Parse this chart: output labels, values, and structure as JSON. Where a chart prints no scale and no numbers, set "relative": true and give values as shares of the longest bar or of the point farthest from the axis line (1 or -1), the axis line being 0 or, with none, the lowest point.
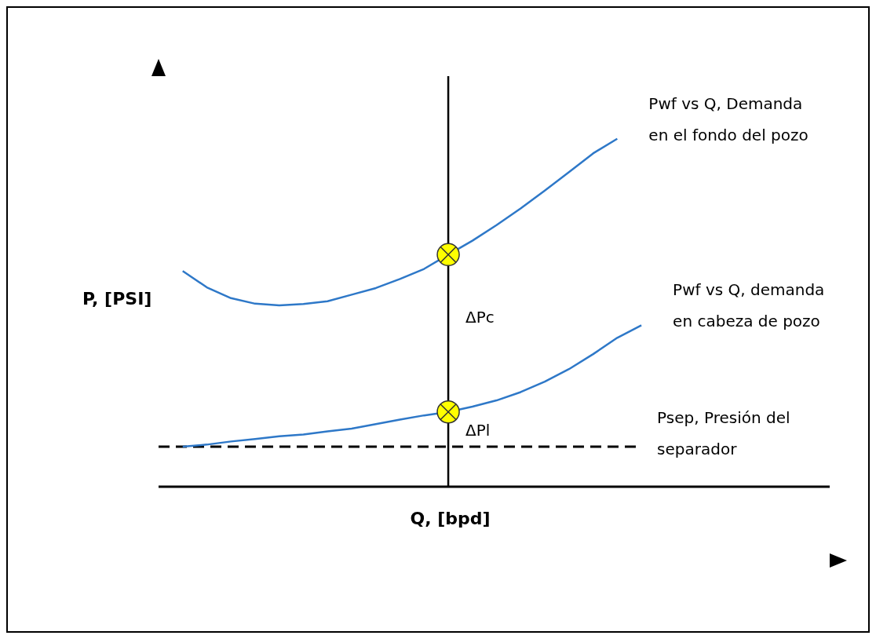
{
  "chart_data": {
    "type": "line",
    "relative": true,
    "xlabel": "Q, [bpd]",
    "ylabel": "P, [PSI]",
    "grid": false,
    "legend": false,
    "categories": [
      null,
      null,
      null,
      null,
      null,
      null,
      null,
      null,
      null,
      null,
      null,
      null,
      null,
      null,
      null,
      null,
      null,
      null,
      null,
      null,
      null
    ],
    "series": [
      {
        "name": "Pwf vs Q, Demanda en el fondo del pozo",
        "color": "#2e78c8",
        "values": [
          null,
          0.62,
          0.573,
          0.542,
          0.526,
          0.521,
          0.525,
          0.533,
          0.552,
          0.571,
          0.597,
          0.626,
          0.667,
          0.707,
          0.752,
          0.8,
          0.851,
          0.904,
          0.958,
          1,
          null
        ]
      },
      {
        "name": "Pwf vs Q, demanda en cabeza de pozo",
        "color": "#2e78c8",
        "values": [
          null,
          0.115,
          0.121,
          0.13,
          0.137,
          0.145,
          0.15,
          0.159,
          0.167,
          0.18,
          0.193,
          0.205,
          0.215,
          0.23,
          0.248,
          0.272,
          0.302,
          0.338,
          0.381,
          0.428,
          0.464
        ]
      }
    ],
    "ref_lines": [
      {
        "axis": "y",
        "value": 0.115,
        "label": "Psep, Presión del separador",
        "color": "#000000",
        "line_style": "dashed"
      }
    ],
    "annotations": [
      "ΔPc",
      "ΔPl"
    ]
  }
}
